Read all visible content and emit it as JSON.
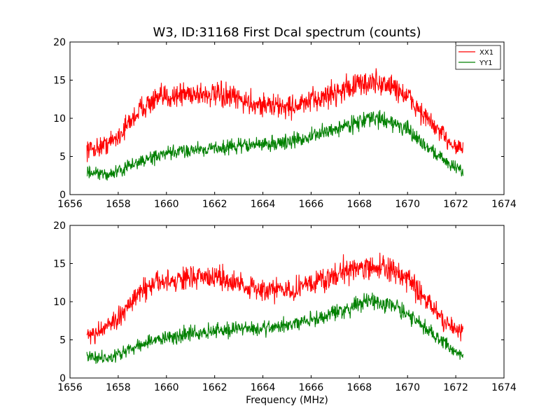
{
  "figure": {
    "title": "W3, ID:31168 First Dcal spectrum (counts)",
    "xlabel": "Frequency (MHz)"
  },
  "chart_data": [
    {
      "type": "line",
      "title": "W3, ID:31168 First Dcal spectrum (counts)",
      "xlabel": "",
      "ylabel": "",
      "xlim": [
        1656,
        1674
      ],
      "ylim": [
        0,
        20
      ],
      "xticks": [
        "1656",
        "1658",
        "1660",
        "1662",
        "1664",
        "1666",
        "1668",
        "1670",
        "1672",
        "1674"
      ],
      "yticks": [
        "0",
        "5",
        "10",
        "15",
        "20"
      ],
      "grid": false,
      "legend": "top-right",
      "x_range": [
        1656.7,
        1672.3
      ],
      "series": [
        {
          "name": "XX1",
          "color": "#ff0000",
          "noise": 1.2,
          "x": [
            1656.7,
            1657.0,
            1657.5,
            1658.0,
            1658.5,
            1659.0,
            1659.5,
            1660.0,
            1660.5,
            1661.0,
            1661.5,
            1662.0,
            1662.5,
            1663.0,
            1663.5,
            1664.0,
            1664.5,
            1665.0,
            1665.5,
            1666.0,
            1666.5,
            1667.0,
            1667.5,
            1668.0,
            1668.5,
            1669.0,
            1669.5,
            1670.0,
            1670.5,
            1671.0,
            1671.5,
            1672.0,
            1672.3
          ],
          "y": [
            6.0,
            6.0,
            6.6,
            7.6,
            9.6,
            11.5,
            12.3,
            12.8,
            13.1,
            13.3,
            13.2,
            13.0,
            12.8,
            12.5,
            12.0,
            11.8,
            11.6,
            11.5,
            11.7,
            12.2,
            12.8,
            13.4,
            14.0,
            14.4,
            14.7,
            14.5,
            14.0,
            12.8,
            11.0,
            9.2,
            7.6,
            6.4,
            6.0
          ]
        },
        {
          "name": "YY1",
          "color": "#008000",
          "noise": 0.9,
          "x": [
            1656.7,
            1657.0,
            1657.5,
            1658.0,
            1658.5,
            1659.0,
            1659.5,
            1660.0,
            1660.5,
            1661.0,
            1661.5,
            1662.0,
            1662.5,
            1663.0,
            1663.5,
            1664.0,
            1664.5,
            1665.0,
            1665.5,
            1666.0,
            1666.5,
            1667.0,
            1667.5,
            1668.0,
            1668.5,
            1669.0,
            1669.5,
            1670.0,
            1670.5,
            1671.0,
            1671.5,
            1672.0,
            1672.3
          ],
          "y": [
            2.9,
            2.7,
            2.6,
            3.0,
            3.8,
            4.4,
            4.9,
            5.3,
            5.6,
            5.9,
            6.0,
            6.1,
            6.2,
            6.4,
            6.5,
            6.6,
            6.7,
            6.9,
            7.2,
            7.6,
            8.1,
            8.6,
            9.1,
            9.6,
            10.0,
            9.8,
            9.3,
            8.4,
            7.1,
            5.8,
            4.6,
            3.5,
            3.0
          ]
        }
      ]
    },
    {
      "type": "line",
      "title": "",
      "xlabel": "Frequency (MHz)",
      "ylabel": "",
      "xlim": [
        1656,
        1674
      ],
      "ylim": [
        0,
        20
      ],
      "xticks": [
        "1656",
        "1658",
        "1660",
        "1662",
        "1664",
        "1666",
        "1668",
        "1670",
        "1672",
        "1674"
      ],
      "yticks": [
        "0",
        "5",
        "10",
        "15",
        "20"
      ],
      "grid": false,
      "legend": "none",
      "x_range": [
        1656.7,
        1672.3
      ],
      "series": [
        {
          "color": "#ff0000",
          "noise": 1.2,
          "x": [
            1656.7,
            1657.0,
            1657.5,
            1658.0,
            1658.5,
            1659.0,
            1659.5,
            1660.0,
            1660.5,
            1661.0,
            1661.5,
            1662.0,
            1662.5,
            1663.0,
            1663.5,
            1664.0,
            1664.5,
            1665.0,
            1665.5,
            1666.0,
            1666.5,
            1667.0,
            1667.5,
            1668.0,
            1668.5,
            1669.0,
            1669.5,
            1670.0,
            1670.5,
            1671.0,
            1671.5,
            1672.0,
            1672.3
          ],
          "y": [
            6.0,
            6.0,
            6.6,
            7.6,
            9.6,
            11.5,
            12.3,
            12.8,
            13.1,
            13.3,
            13.2,
            13.0,
            12.8,
            12.5,
            12.0,
            11.8,
            11.6,
            11.5,
            11.7,
            12.2,
            12.8,
            13.4,
            14.0,
            14.4,
            14.7,
            14.5,
            14.0,
            12.8,
            11.0,
            9.2,
            7.6,
            6.4,
            6.0
          ]
        },
        {
          "color": "#008000",
          "noise": 0.9,
          "x": [
            1656.7,
            1657.0,
            1657.5,
            1658.0,
            1658.5,
            1659.0,
            1659.5,
            1660.0,
            1660.5,
            1661.0,
            1661.5,
            1662.0,
            1662.5,
            1663.0,
            1663.5,
            1664.0,
            1664.5,
            1665.0,
            1665.5,
            1666.0,
            1666.5,
            1667.0,
            1667.5,
            1668.0,
            1668.5,
            1669.0,
            1669.5,
            1670.0,
            1670.5,
            1671.0,
            1671.5,
            1672.0,
            1672.3
          ],
          "y": [
            2.9,
            2.7,
            2.6,
            3.0,
            3.8,
            4.4,
            4.9,
            5.3,
            5.6,
            5.9,
            6.0,
            6.1,
            6.2,
            6.4,
            6.5,
            6.6,
            6.7,
            6.9,
            7.2,
            7.6,
            8.1,
            8.6,
            9.1,
            9.6,
            10.0,
            9.8,
            9.3,
            8.4,
            7.1,
            5.8,
            4.6,
            3.5,
            3.0
          ]
        }
      ]
    }
  ]
}
